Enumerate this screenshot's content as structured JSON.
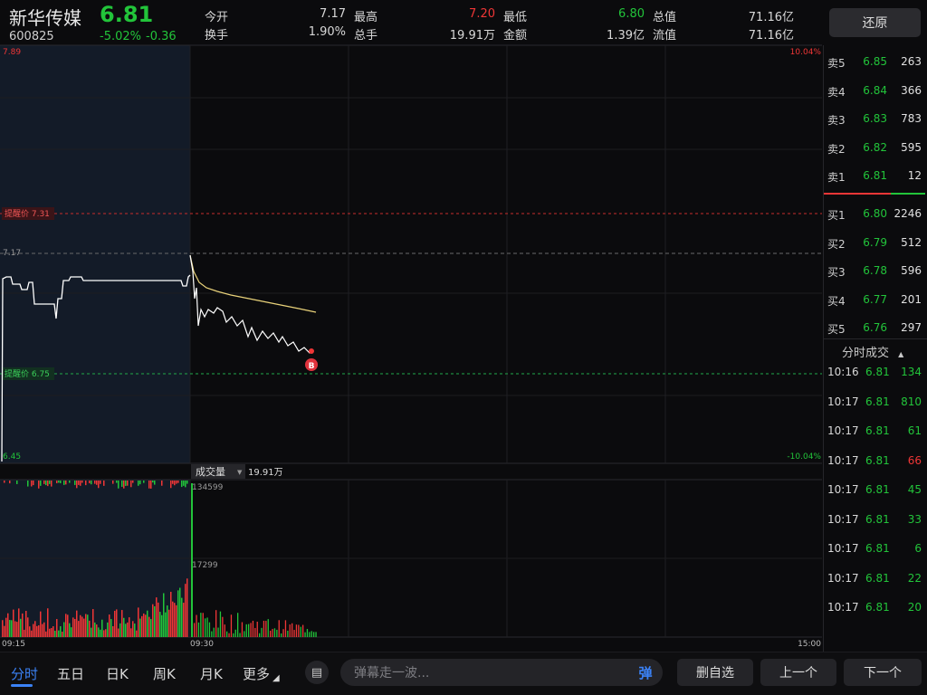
{
  "header": {
    "name": "新华传媒",
    "price": "6.81",
    "code": "600825",
    "change_pct": "-5.02%",
    "change_val": "-0.36",
    "stats": [
      {
        "label": "今开",
        "value": "7.17",
        "color": "#d8d8d8"
      },
      {
        "label": "换手",
        "value": "1.90%",
        "color": "#d8d8d8"
      },
      {
        "label": "最高",
        "value": "7.20",
        "color": "#ef3636"
      },
      {
        "label": "总手",
        "value": "19.91万",
        "color": "#d8d8d8"
      },
      {
        "label": "最低",
        "value": "6.80",
        "color": "#22c43a"
      },
      {
        "label": "金额",
        "value": "1.39亿",
        "color": "#d8d8d8"
      },
      {
        "label": "总值",
        "value": "71.16亿",
        "color": "#d8d8d8"
      },
      {
        "label": "流值",
        "value": "71.16亿",
        "color": "#d8d8d8"
      }
    ],
    "restore_label": "还原"
  },
  "chart": {
    "top_left": "7.89",
    "top_right": "10.04%",
    "bottom_left": "6.45",
    "bottom_right": "-10.04%",
    "prev_close": "7.17",
    "alert_high_label": "提醒价 7.31",
    "alert_low_label": "提醒价 6.75",
    "marker": "B",
    "volume_label": "成交量",
    "volume_total": "19.91万",
    "vol_peak": "134599",
    "vol_mid": "17299",
    "time_start": "09:15",
    "time_open": "09:30",
    "time_end": "15:00",
    "colors": {
      "up": "#ef3636",
      "down": "#22c43a",
      "avg_line": "#e9d27a",
      "price_line": "#ffffff"
    }
  },
  "order_book": {
    "asks": [
      {
        "label": "卖5",
        "price": "6.85",
        "vol": "263"
      },
      {
        "label": "卖4",
        "price": "6.84",
        "vol": "366"
      },
      {
        "label": "卖3",
        "price": "6.83",
        "vol": "783"
      },
      {
        "label": "卖2",
        "price": "6.82",
        "vol": "595"
      },
      {
        "label": "卖1",
        "price": "6.81",
        "vol": "12"
      }
    ],
    "bids": [
      {
        "label": "买1",
        "price": "6.80",
        "vol": "2246"
      },
      {
        "label": "买2",
        "price": "6.79",
        "vol": "512"
      },
      {
        "label": "买3",
        "price": "6.78",
        "vol": "596"
      },
      {
        "label": "买4",
        "price": "6.77",
        "vol": "201"
      },
      {
        "label": "买5",
        "price": "6.76",
        "vol": "297"
      }
    ]
  },
  "trades": {
    "title": "分时成交",
    "rows": [
      {
        "time": "10:16",
        "price": "6.81",
        "vol": "134",
        "dir": "down"
      },
      {
        "time": "10:17",
        "price": "6.81",
        "vol": "810",
        "dir": "down"
      },
      {
        "time": "10:17",
        "price": "6.81",
        "vol": "61",
        "dir": "down"
      },
      {
        "time": "10:17",
        "price": "6.81",
        "vol": "66",
        "dir": "up"
      },
      {
        "time": "10:17",
        "price": "6.81",
        "vol": "45",
        "dir": "down"
      },
      {
        "time": "10:17",
        "price": "6.81",
        "vol": "33",
        "dir": "down"
      },
      {
        "time": "10:17",
        "price": "6.81",
        "vol": "6",
        "dir": "down"
      },
      {
        "time": "10:17",
        "price": "6.81",
        "vol": "22",
        "dir": "down"
      },
      {
        "time": "10:17",
        "price": "6.81",
        "vol": "20",
        "dir": "down"
      }
    ]
  },
  "bottom": {
    "tabs": [
      "分时",
      "五日",
      "日K",
      "周K",
      "月K",
      "更多"
    ],
    "active_tab": "分时",
    "barrage_placeholder": "弹幕走一波...",
    "barrage_button": "弹",
    "buttons": [
      "删自选",
      "上一个",
      "下一个"
    ]
  }
}
